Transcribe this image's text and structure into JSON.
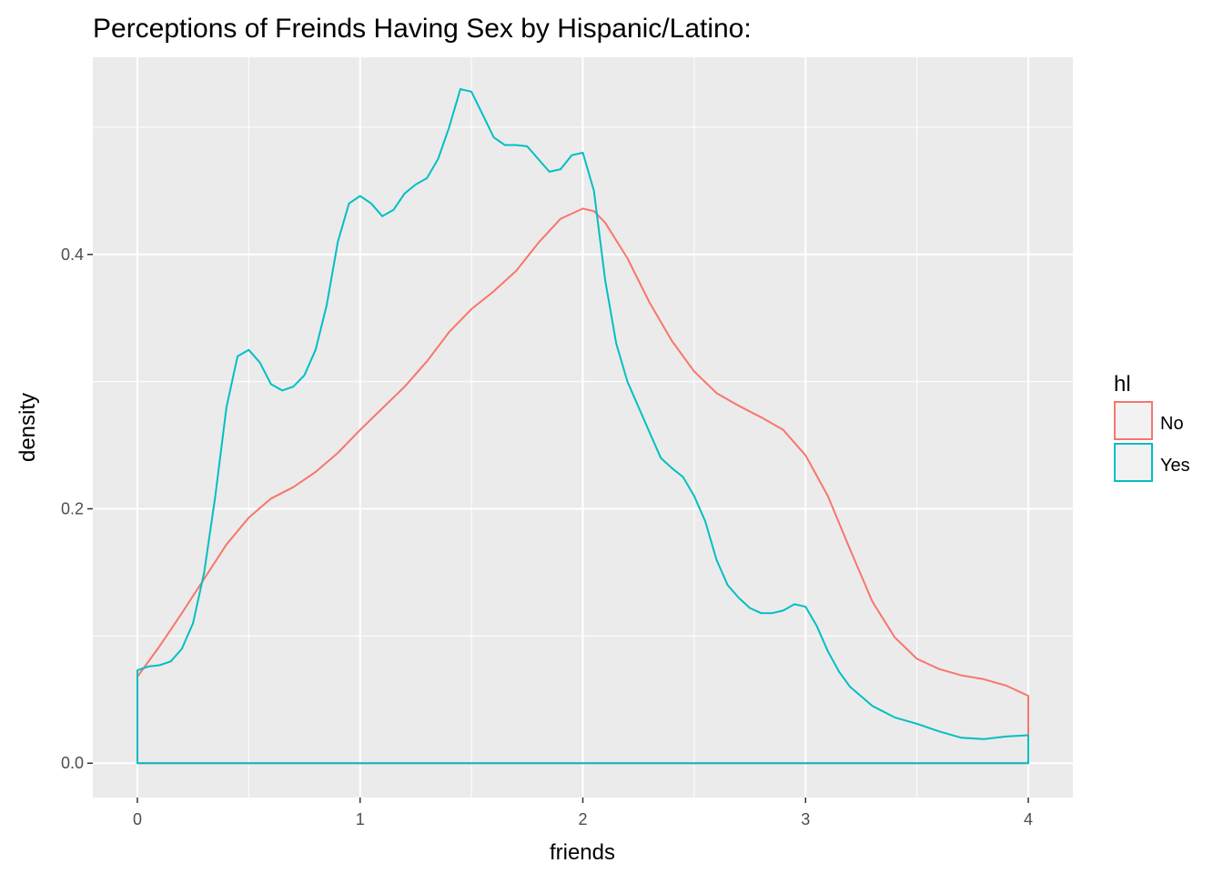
{
  "chart_data": {
    "type": "line",
    "title": "Perceptions of Freinds Having Sex by Hispanic/Latino:",
    "xlabel": "friends",
    "ylabel": "density",
    "xlim": [
      -0.2,
      4.2
    ],
    "ylim": [
      -0.027,
      0.555
    ],
    "x_ticks": [
      0,
      1,
      2,
      3,
      4
    ],
    "x_tick_labels": [
      "0",
      "1",
      "2",
      "3",
      "4"
    ],
    "y_ticks": [
      0.0,
      0.2,
      0.4
    ],
    "y_tick_labels": [
      "0.0",
      "0.2",
      "0.4"
    ],
    "grid": true,
    "legend": {
      "title": "hl",
      "position": "right"
    },
    "series": [
      {
        "name": "No",
        "color": "#F8766D",
        "x": [
          0,
          0.1,
          0.2,
          0.3,
          0.4,
          0.5,
          0.6,
          0.7,
          0.8,
          0.9,
          1.0,
          1.1,
          1.2,
          1.3,
          1.4,
          1.5,
          1.6,
          1.7,
          1.8,
          1.9,
          2.0,
          2.05,
          2.1,
          2.2,
          2.3,
          2.4,
          2.5,
          2.6,
          2.7,
          2.8,
          2.9,
          3.0,
          3.1,
          3.2,
          3.3,
          3.4,
          3.5,
          3.6,
          3.7,
          3.8,
          3.9,
          4.0
        ],
        "y": [
          0.068,
          0.092,
          0.118,
          0.145,
          0.172,
          0.193,
          0.208,
          0.217,
          0.229,
          0.244,
          0.262,
          0.279,
          0.296,
          0.316,
          0.339,
          0.357,
          0.371,
          0.387,
          0.409,
          0.428,
          0.436,
          0.434,
          0.425,
          0.397,
          0.362,
          0.332,
          0.308,
          0.291,
          0.281,
          0.272,
          0.262,
          0.242,
          0.21,
          0.168,
          0.127,
          0.099,
          0.082,
          0.074,
          0.069,
          0.066,
          0.061,
          0.053
        ]
      },
      {
        "name": "Yes",
        "color": "#00BFC4",
        "x": [
          0,
          0.05,
          0.1,
          0.15,
          0.2,
          0.25,
          0.3,
          0.35,
          0.4,
          0.45,
          0.5,
          0.55,
          0.6,
          0.65,
          0.7,
          0.75,
          0.8,
          0.85,
          0.9,
          0.95,
          1.0,
          1.05,
          1.1,
          1.15,
          1.2,
          1.25,
          1.3,
          1.35,
          1.4,
          1.45,
          1.5,
          1.55,
          1.6,
          1.65,
          1.7,
          1.75,
          1.8,
          1.85,
          1.9,
          1.95,
          2.0,
          2.05,
          2.1,
          2.15,
          2.2,
          2.25,
          2.3,
          2.35,
          2.4,
          2.45,
          2.5,
          2.55,
          2.6,
          2.65,
          2.7,
          2.75,
          2.8,
          2.85,
          2.9,
          2.95,
          3.0,
          3.05,
          3.1,
          3.15,
          3.2,
          3.3,
          3.4,
          3.5,
          3.6,
          3.7,
          3.8,
          3.9,
          4.0
        ],
        "y": [
          0.073,
          0.076,
          0.077,
          0.08,
          0.09,
          0.11,
          0.15,
          0.21,
          0.28,
          0.32,
          0.325,
          0.315,
          0.298,
          0.293,
          0.296,
          0.305,
          0.325,
          0.36,
          0.41,
          0.44,
          0.446,
          0.44,
          0.43,
          0.435,
          0.448,
          0.455,
          0.46,
          0.475,
          0.5,
          0.53,
          0.528,
          0.51,
          0.492,
          0.486,
          0.486,
          0.485,
          0.475,
          0.465,
          0.467,
          0.478,
          0.48,
          0.45,
          0.38,
          0.33,
          0.3,
          0.28,
          0.26,
          0.24,
          0.232,
          0.225,
          0.21,
          0.19,
          0.16,
          0.14,
          0.13,
          0.122,
          0.118,
          0.118,
          0.12,
          0.125,
          0.123,
          0.108,
          0.088,
          0.072,
          0.06,
          0.045,
          0.036,
          0.031,
          0.025,
          0.02,
          0.019,
          0.021,
          0.022
        ]
      }
    ]
  }
}
